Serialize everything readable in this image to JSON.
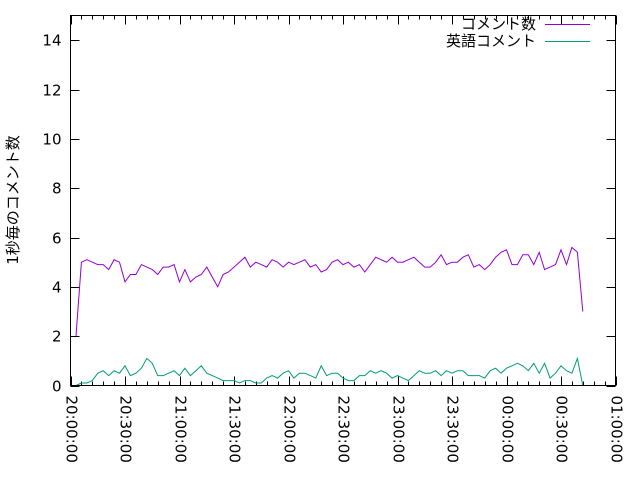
{
  "chart_data": {
    "type": "line",
    "title": "",
    "xlabel": "",
    "ylabel": "1秒毎のコメント数",
    "xlim": [
      "20:00:00",
      "01:00:00"
    ],
    "ylim": [
      0,
      15
    ],
    "x_ticks": [
      "20:00:00",
      "20:30:00",
      "21:00:00",
      "21:30:00",
      "22:00:00",
      "22:30:00",
      "23:00:00",
      "23:30:00",
      "00:00:00",
      "00:30:00",
      "01:00:00"
    ],
    "y_ticks": [
      "0",
      "2",
      "4",
      "6",
      "8",
      "10",
      "12",
      "14"
    ],
    "grid": false,
    "legend_placement": "top-right",
    "x": [
      "20:03",
      "20:06",
      "20:09",
      "20:12",
      "20:15",
      "20:18",
      "20:21",
      "20:24",
      "20:27",
      "20:30",
      "20:33",
      "20:36",
      "20:39",
      "20:42",
      "20:45",
      "20:48",
      "20:51",
      "20:54",
      "20:57",
      "21:00",
      "21:03",
      "21:06",
      "21:09",
      "21:12",
      "21:15",
      "21:18",
      "21:21",
      "21:24",
      "21:27",
      "21:30",
      "21:33",
      "21:36",
      "21:39",
      "21:42",
      "21:45",
      "21:48",
      "21:51",
      "21:54",
      "21:57",
      "22:00",
      "22:03",
      "22:06",
      "22:09",
      "22:12",
      "22:15",
      "22:18",
      "22:21",
      "22:24",
      "22:27",
      "22:30",
      "22:33",
      "22:36",
      "22:39",
      "22:42",
      "22:45",
      "22:48",
      "22:51",
      "22:54",
      "22:57",
      "23:00",
      "23:03",
      "23:06",
      "23:09",
      "23:12",
      "23:15",
      "23:18",
      "23:21",
      "23:24",
      "23:27",
      "23:30",
      "23:33",
      "23:36",
      "23:39",
      "23:42",
      "23:45",
      "23:48",
      "23:51",
      "23:54",
      "23:57",
      "00:00",
      "00:03",
      "00:06",
      "00:09",
      "00:12",
      "00:15",
      "00:18",
      "00:21",
      "00:24",
      "00:27",
      "00:30",
      "00:33",
      "00:36",
      "00:39",
      "00:42"
    ],
    "series": [
      {
        "name": "コメント数",
        "color": "#9400d3",
        "values": [
          2.0,
          5.0,
          5.1,
          5.0,
          4.9,
          4.9,
          4.7,
          5.1,
          5.0,
          4.2,
          4.5,
          4.5,
          4.9,
          4.8,
          4.7,
          4.5,
          4.8,
          4.8,
          4.9,
          4.2,
          4.7,
          4.2,
          4.4,
          4.5,
          4.8,
          4.4,
          4.0,
          4.5,
          4.6,
          4.8,
          5.0,
          5.2,
          4.8,
          5.0,
          4.9,
          4.8,
          5.1,
          5.0,
          4.8,
          5.0,
          4.9,
          5.0,
          5.1,
          4.8,
          4.9,
          4.6,
          4.7,
          5.0,
          5.1,
          4.9,
          5.0,
          4.8,
          4.9,
          4.6,
          4.9,
          5.2,
          5.1,
          5.0,
          5.2,
          5.0,
          5.0,
          5.1,
          5.2,
          5.0,
          4.8,
          4.8,
          5.0,
          5.3,
          4.9,
          5.0,
          5.0,
          5.2,
          5.3,
          4.8,
          4.9,
          4.7,
          4.9,
          5.2,
          5.4,
          5.5,
          4.9,
          4.9,
          5.3,
          5.3,
          4.9,
          5.4,
          4.7,
          4.8,
          4.9,
          5.5,
          4.9,
          5.6,
          5.4,
          3.0
        ]
      },
      {
        "name": "英語コメント",
        "color": "#009e73",
        "values": [
          0.0,
          0.1,
          0.1,
          0.2,
          0.5,
          0.6,
          0.4,
          0.6,
          0.5,
          0.8,
          0.4,
          0.5,
          0.7,
          1.1,
          0.9,
          0.4,
          0.4,
          0.5,
          0.6,
          0.4,
          0.7,
          0.4,
          0.6,
          0.8,
          0.5,
          0.4,
          0.3,
          0.2,
          0.2,
          0.2,
          0.1,
          0.2,
          0.2,
          0.1,
          0.1,
          0.3,
          0.4,
          0.3,
          0.5,
          0.6,
          0.3,
          0.5,
          0.5,
          0.4,
          0.3,
          0.8,
          0.4,
          0.5,
          0.5,
          0.3,
          0.2,
          0.2,
          0.4,
          0.4,
          0.6,
          0.5,
          0.6,
          0.5,
          0.3,
          0.4,
          0.3,
          0.2,
          0.4,
          0.6,
          0.5,
          0.5,
          0.6,
          0.4,
          0.6,
          0.5,
          0.6,
          0.6,
          0.4,
          0.4,
          0.4,
          0.3,
          0.6,
          0.7,
          0.5,
          0.7,
          0.8,
          0.9,
          0.8,
          0.6,
          0.9,
          0.5,
          0.9,
          0.3,
          0.5,
          0.8,
          0.6,
          0.5,
          1.1,
          0.0
        ]
      }
    ]
  }
}
